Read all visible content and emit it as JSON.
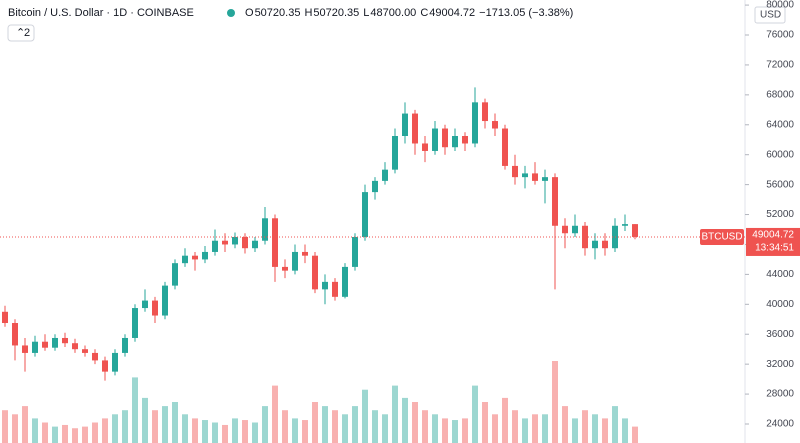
{
  "chart_data": {
    "type": "candlestick",
    "title": "Bitcoin / U.S. Dollar · 1D · COINBASE",
    "legend": [
      {
        "label": "O",
        "value": "50720.35"
      },
      {
        "label": "H",
        "value": "50720.35"
      },
      {
        "label": "L",
        "value": "48700.00"
      },
      {
        "label": "C",
        "value": "49004.72"
      }
    ],
    "change": "−1713.05 (−3.38%)",
    "indicator_count": "2",
    "currency": "USD",
    "symbol": "BTCUSD",
    "last_price": 49004.72,
    "countdown": "13:34:51",
    "up_color": "#26a69a",
    "down_color": "#ef5350",
    "ylim": [
      21460,
      80680
    ],
    "yticks": [
      24000,
      28000,
      32000,
      36000,
      40000,
      44000,
      48000,
      52000,
      56000,
      60000,
      64000,
      68000,
      72000,
      76000,
      80000
    ],
    "open": [
      39000,
      37500,
      34500,
      33500,
      35000,
      34200,
      35500,
      34800,
      34000,
      33500,
      32500,
      31000,
      33500,
      35500,
      39500,
      40500,
      38500,
      42500,
      45500,
      46500,
      46000,
      47000,
      48500,
      48000,
      49000,
      47500,
      48500,
      51500,
      45000,
      44500,
      47000,
      46500,
      42000,
      43000,
      41000,
      45000,
      49000,
      55000,
      56500,
      58000,
      62500,
      65500,
      61500,
      60500,
      63500,
      61000,
      62500,
      61500,
      67000,
      64500,
      63500,
      58500,
      57000,
      57500,
      56500,
      57000,
      50500,
      49500,
      50500,
      47500,
      48500,
      47500,
      50500,
      50720.35
    ],
    "high": [
      39800,
      38000,
      35500,
      35800,
      36000,
      36000,
      36200,
      35400,
      34500,
      34000,
      33000,
      34000,
      36000,
      40000,
      42000,
      41000,
      43000,
      46000,
      47500,
      47000,
      47800,
      50000,
      49500,
      49600,
      49500,
      49000,
      53000,
      52000,
      46000,
      48000,
      48000,
      47000,
      44000,
      43500,
      45500,
      49500,
      56000,
      57000,
      59000,
      63500,
      67000,
      66000,
      62500,
      64500,
      64000,
      63500,
      63000,
      69000,
      67500,
      65500,
      64000,
      60000,
      58500,
      59000,
      58000,
      57500,
      51500,
      52000,
      51000,
      49500,
      49500,
      51500,
      52000,
      50720.35
    ],
    "low": [
      37000,
      32500,
      31000,
      33000,
      33800,
      33800,
      34300,
      33500,
      33000,
      32000,
      29800,
      30500,
      33000,
      35000,
      39000,
      37500,
      38000,
      42000,
      45000,
      44500,
      45500,
      46500,
      47000,
      47500,
      46800,
      47000,
      48000,
      43000,
      43500,
      44000,
      45500,
      41500,
      40000,
      40500,
      40800,
      44500,
      48500,
      54000,
      56000,
      57500,
      61500,
      60000,
      59000,
      60000,
      60000,
      60500,
      60500,
      61000,
      63500,
      62500,
      58000,
      56000,
      55500,
      56000,
      53500,
      42000,
      47500,
      49000,
      46500,
      46000,
      46500,
      47000,
      49800,
      48700
    ],
    "close": [
      37500,
      34500,
      33500,
      35000,
      34200,
      35500,
      34800,
      34000,
      33500,
      32500,
      31000,
      33500,
      35500,
      39500,
      40500,
      38500,
      42500,
      45500,
      46500,
      46000,
      47000,
      48500,
      48000,
      49000,
      47500,
      48500,
      51500,
      45000,
      44500,
      47000,
      46500,
      42000,
      43000,
      41000,
      45000,
      49000,
      55000,
      56500,
      58000,
      62500,
      65500,
      61500,
      60500,
      63500,
      61000,
      62500,
      61500,
      67000,
      64500,
      63500,
      58500,
      57000,
      57500,
      56500,
      57000,
      50500,
      49500,
      50500,
      47500,
      48500,
      47500,
      50500,
      50720.35,
      49004.72
    ],
    "volume": [
      40,
      35,
      45,
      30,
      25,
      20,
      22,
      18,
      20,
      25,
      30,
      35,
      40,
      80,
      55,
      40,
      45,
      50,
      35,
      30,
      28,
      25,
      22,
      30,
      28,
      25,
      45,
      70,
      40,
      30,
      28,
      50,
      45,
      40,
      35,
      45,
      65,
      40,
      35,
      70,
      55,
      50,
      40,
      35,
      30,
      28,
      30,
      70,
      50,
      35,
      55,
      40,
      30,
      35,
      35,
      100,
      45,
      30,
      40,
      35,
      30,
      45,
      30,
      20
    ]
  }
}
